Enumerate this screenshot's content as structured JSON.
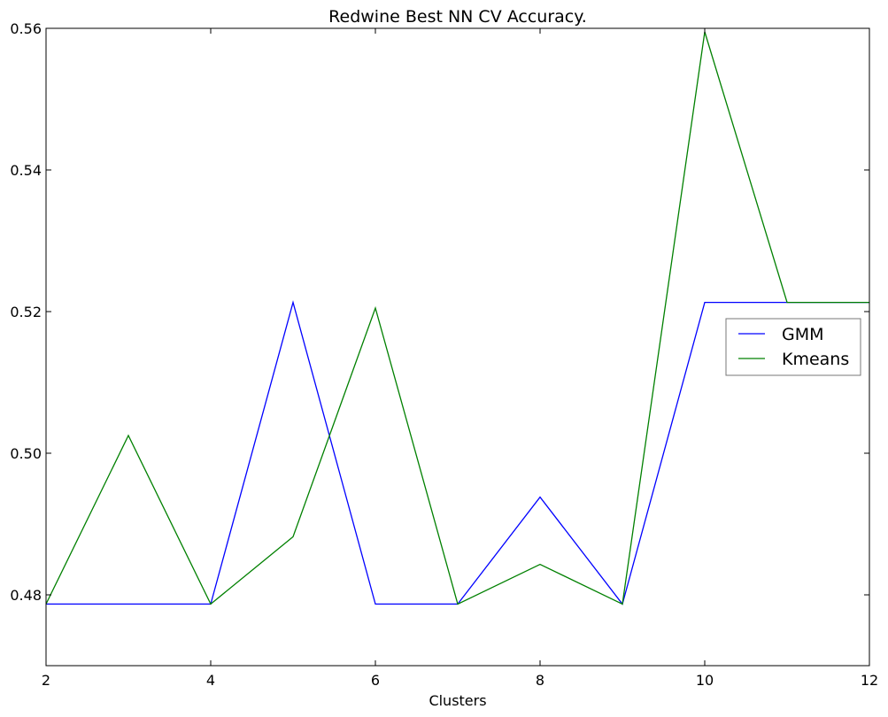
{
  "chart_data": {
    "type": "line",
    "title": "Redwine Best NN CV Accuracy.",
    "xlabel": "Clusters",
    "ylabel": "",
    "xlim": [
      2,
      12
    ],
    "ylim": [
      0.47,
      0.56
    ],
    "xticks": [
      2,
      4,
      6,
      8,
      10,
      12
    ],
    "yticks": [
      0.48,
      0.5,
      0.52,
      0.54,
      0.56
    ],
    "ytick_labels": [
      "0.48",
      "0.50",
      "0.52",
      "0.54",
      "0.56"
    ],
    "grid": false,
    "legend_position": "center-right",
    "x": [
      2,
      3,
      4,
      5,
      6,
      7,
      8,
      9,
      10,
      11,
      12
    ],
    "series": [
      {
        "name": "GMM",
        "color": "#0000ff",
        "values": [
          0.4787,
          0.4787,
          0.4787,
          0.5213,
          0.4787,
          0.4787,
          0.4938,
          0.4787,
          0.5213,
          0.5213,
          0.5213
        ]
      },
      {
        "name": "Kmeans",
        "color": "#008000",
        "values": [
          0.4787,
          0.5025,
          0.4787,
          0.4882,
          0.5205,
          0.4787,
          0.4843,
          0.4787,
          0.5595,
          0.5213,
          0.5213
        ]
      }
    ]
  }
}
